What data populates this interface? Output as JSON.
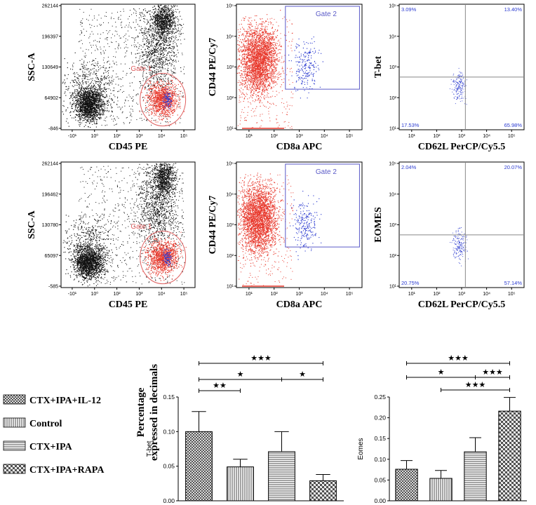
{
  "colors": {
    "red_dots": "#e83a2e",
    "black_dots": "#111111",
    "blue_dots": "#2b3bd0",
    "gate1": "#e06060",
    "gate2": "#5a5ac8",
    "quad_text": "#2b3bd0"
  },
  "chart_data": [
    {
      "type": "scatter",
      "panel": "row1-cd45",
      "xlabel": "CD45 PE",
      "ylabel": "SSC-A",
      "xticks": [
        "-10¹",
        "10⁰",
        "10²",
        "10³",
        "10⁴",
        "10⁵"
      ],
      "yticks": [
        "262144",
        "196397",
        "130649",
        "64902",
        "-846"
      ],
      "gates": [
        {
          "label": "Gate 1",
          "color": "#e06060"
        }
      ],
      "x_scale": "logicle",
      "y_range": [
        -846,
        262144
      ]
    },
    {
      "type": "scatter",
      "panel": "row1-cd8",
      "xlabel": "CD8a APC",
      "ylabel": "CD44 PE/Cy7",
      "xticks": [
        "10¹",
        "10²",
        "10³",
        "10⁴",
        "10⁵"
      ],
      "yticks": [
        "10⁵",
        "10⁴",
        "10³",
        "10²",
        "10¹"
      ],
      "gates": [
        {
          "label": "Gate 2",
          "color": "#5a5ac8"
        }
      ],
      "x_scale": "log",
      "y_scale": "log"
    },
    {
      "type": "scatter",
      "panel": "row1-tbet",
      "xlabel": "CD62L PerCP/Cy5.5",
      "ylabel": "T-bet",
      "xticks": [
        "10¹",
        "10²",
        "10³",
        "10⁴",
        "10⁵"
      ],
      "yticks": [
        "10⁵",
        "10⁴",
        "10³",
        "10²",
        "10¹"
      ],
      "quadrants": {
        "ul": "3.09%",
        "ur": "13.40%",
        "ll": "17.53%",
        "lr": "65.98%"
      }
    },
    {
      "type": "scatter",
      "panel": "row2-cd45",
      "xlabel": "CD45 PE",
      "ylabel": "SSC-A",
      "xticks": [
        "-10¹",
        "10⁰",
        "10²",
        "10³",
        "10⁴",
        "10⁵"
      ],
      "yticks": [
        "262144",
        "196462",
        "130780",
        "65097",
        "-585"
      ],
      "gates": [
        {
          "label": "Gate 1",
          "color": "#e06060"
        }
      ],
      "x_scale": "logicle",
      "y_range": [
        -585,
        262144
      ]
    },
    {
      "type": "scatter",
      "panel": "row2-cd8",
      "xlabel": "CD8a APC",
      "ylabel": "CD44 PE/Cy7",
      "xticks": [
        "10¹",
        "10²",
        "10³",
        "10⁴",
        "10⁵"
      ],
      "yticks": [
        "10⁵",
        "10⁴",
        "10³",
        "10²",
        "10¹"
      ],
      "gates": [
        {
          "label": "Gate 2",
          "color": "#5a5ac8"
        }
      ],
      "x_scale": "log",
      "y_scale": "log"
    },
    {
      "type": "scatter",
      "panel": "row2-eomes",
      "xlabel": "CD62L PerCP/Cy5.5",
      "ylabel": "EOMES",
      "xticks": [
        "10¹",
        "10²",
        "10³",
        "10⁴",
        "10⁵"
      ],
      "yticks": [
        "10⁵",
        "10⁴",
        "10³",
        "10²",
        "10¹"
      ],
      "quadrants": {
        "ul": "2.04%",
        "ur": "20.07%",
        "ll": "20.75%",
        "lr": "57.14%"
      }
    },
    {
      "type": "bar",
      "panel": "tbet-bars",
      "ylabel": "T-bet",
      "ylim": [
        0,
        0.15
      ],
      "yticks": [
        "0.00",
        "0.05",
        "0.10",
        "0.15"
      ],
      "categories": [
        "CTX+IPA+IL-12",
        "Control",
        "CTX+IPA",
        "CTX+IPA+RAPA"
      ],
      "values": [
        0.1,
        0.049,
        0.071,
        0.029
      ],
      "errors": [
        0.029,
        0.011,
        0.029,
        0.009
      ],
      "significance": [
        {
          "from": 0,
          "to": 1,
          "stars": "★★"
        },
        {
          "from": 0,
          "to": 2,
          "stars": "★"
        },
        {
          "from": 2,
          "to": 3,
          "stars": "★"
        },
        {
          "from": 0,
          "to": 3,
          "stars": "★★★"
        }
      ]
    },
    {
      "type": "bar",
      "panel": "eomes-bars",
      "ylabel": "Eomes",
      "ylim": [
        0,
        0.25
      ],
      "yticks": [
        "0.00",
        "0.05",
        "0.10",
        "0.15",
        "0.20",
        "0.25"
      ],
      "categories": [
        "CTX+IPA+IL-12",
        "Control",
        "CTX+IPA",
        "CTX+IPA+RAPA"
      ],
      "values": [
        0.076,
        0.054,
        0.118,
        0.216
      ],
      "errors": [
        0.021,
        0.019,
        0.034,
        0.033
      ],
      "significance": [
        {
          "from": 1,
          "to": 3,
          "stars": "★★★"
        },
        {
          "from": 0,
          "to": 2,
          "stars": "★"
        },
        {
          "from": 2,
          "to": 3,
          "stars": "★★★"
        },
        {
          "from": 0,
          "to": 3,
          "stars": "★★★"
        }
      ]
    }
  ],
  "bar_ylabel_lines": [
    "Percentage",
    "expressed in decimals"
  ],
  "legend": [
    {
      "label": "CTX+IPA+IL-12",
      "pattern": "pat-cross"
    },
    {
      "label": "Control",
      "pattern": "pat-vert"
    },
    {
      "label": "CTX+IPA",
      "pattern": "pat-horiz"
    },
    {
      "label": "CTX+IPA+RAPA",
      "pattern": "pat-check"
    }
  ]
}
